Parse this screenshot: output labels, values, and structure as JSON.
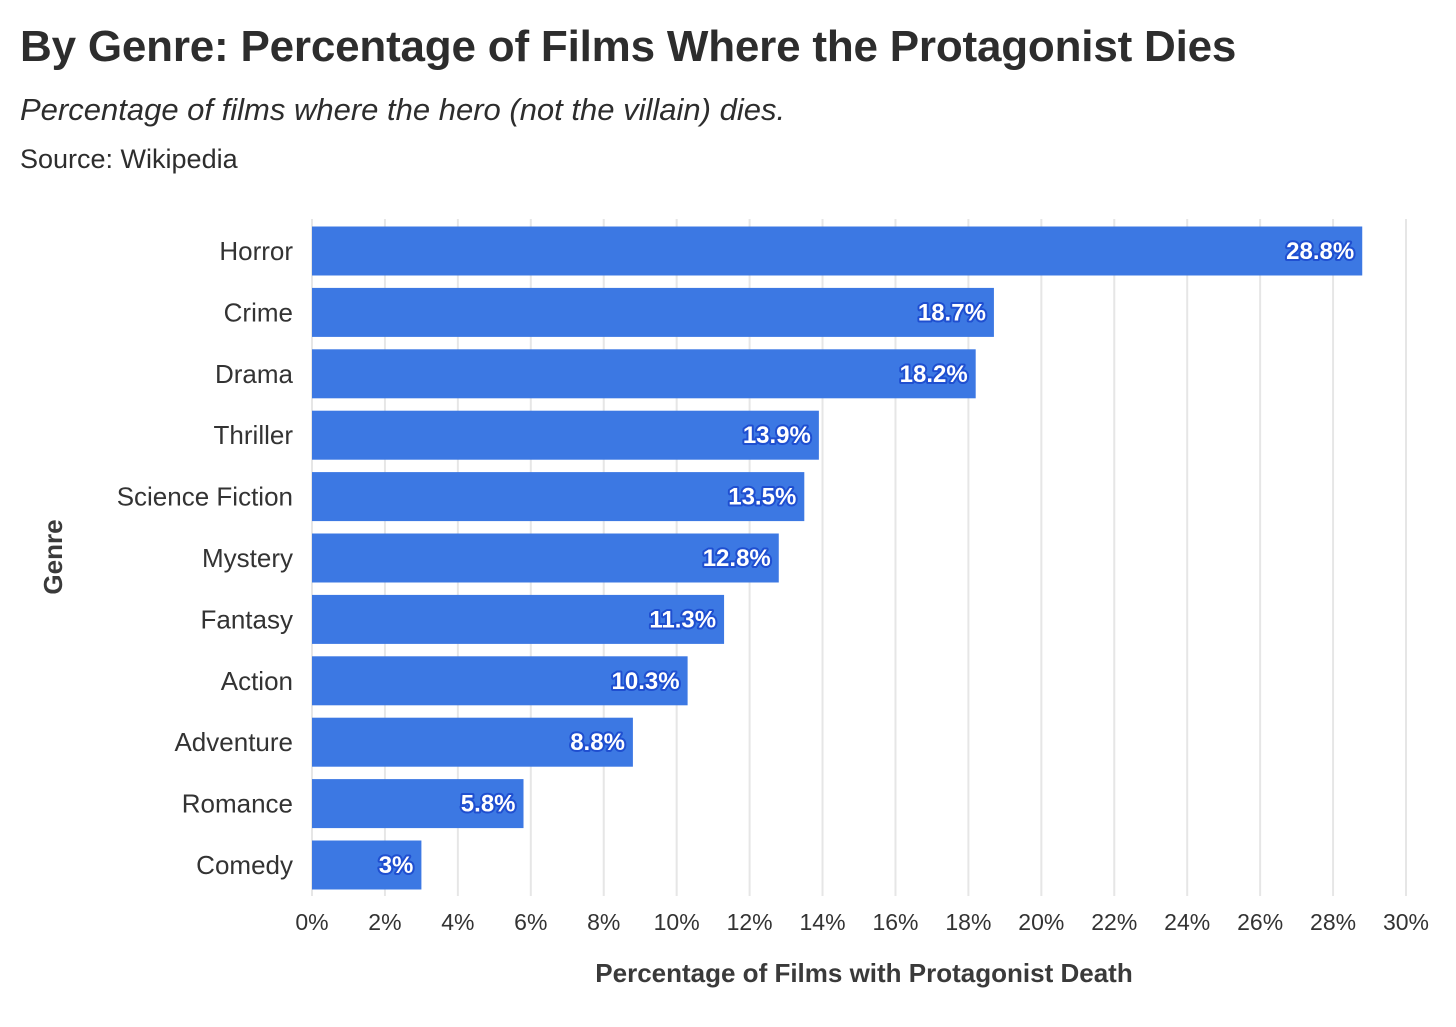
{
  "header": {
    "title": "By Genre: Percentage of Films Where the Protagonist Dies",
    "subtitle": "Percentage of films where the hero (not the villain) dies.",
    "source": "Source: Wikipedia"
  },
  "chart_data": {
    "type": "bar",
    "orientation": "horizontal",
    "title": "By Genre: Percentage of Films Where the Protagonist Dies",
    "subtitle": "Percentage of films where the hero (not the villain) dies.",
    "xlabel": "Percentage of Films with Protagonist Death",
    "ylabel": "Genre",
    "categories": [
      "Horror",
      "Crime",
      "Drama",
      "Thriller",
      "Science Fiction",
      "Mystery",
      "Fantasy",
      "Action",
      "Adventure",
      "Romance",
      "Comedy"
    ],
    "values": [
      28.8,
      18.7,
      18.2,
      13.9,
      13.5,
      12.8,
      11.3,
      10.3,
      8.8,
      5.8,
      3
    ],
    "data_labels": [
      "28.8%",
      "18.7%",
      "18.2%",
      "13.9%",
      "13.5%",
      "12.8%",
      "11.3%",
      "10.3%",
      "8.8%",
      "5.8%",
      "3%"
    ],
    "xlim": [
      0,
      30
    ],
    "x_ticks": [
      0,
      2,
      4,
      6,
      8,
      10,
      12,
      14,
      16,
      18,
      20,
      22,
      24,
      26,
      28,
      30
    ],
    "x_tick_labels": [
      "0%",
      "2%",
      "4%",
      "6%",
      "8%",
      "10%",
      "12%",
      "14%",
      "16%",
      "18%",
      "20%",
      "22%",
      "24%",
      "26%",
      "28%",
      "30%"
    ],
    "grid": true,
    "bar_color": "#3c78e3",
    "label_outline_color": "#1f4fd0"
  }
}
